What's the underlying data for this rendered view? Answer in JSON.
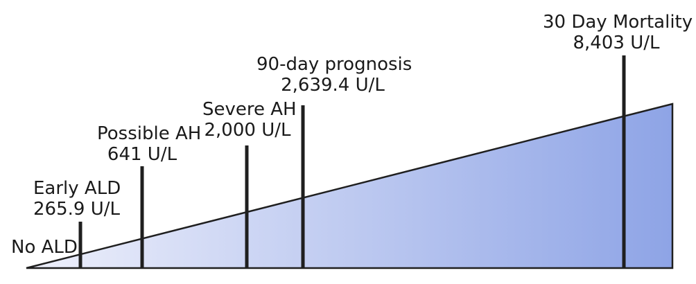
{
  "colors": {
    "wedge_light": "#eef0fb",
    "wedge_dark": "#8ea4e6",
    "line": "#1f1f1f",
    "text": "#1a1a1a"
  },
  "markers": [
    {
      "title": "No ALD",
      "value": ""
    },
    {
      "title": "Early ALD",
      "value": "265.9 U/L"
    },
    {
      "title": "Possible AH",
      "value": "641 U/L"
    },
    {
      "title": "Severe AH",
      "value": "2,000 U/L"
    },
    {
      "title": "90-day prognosis",
      "value": "2,639.4 U/L"
    },
    {
      "title": "30 Day Mortality",
      "value": "8,403 U/L"
    }
  ]
}
